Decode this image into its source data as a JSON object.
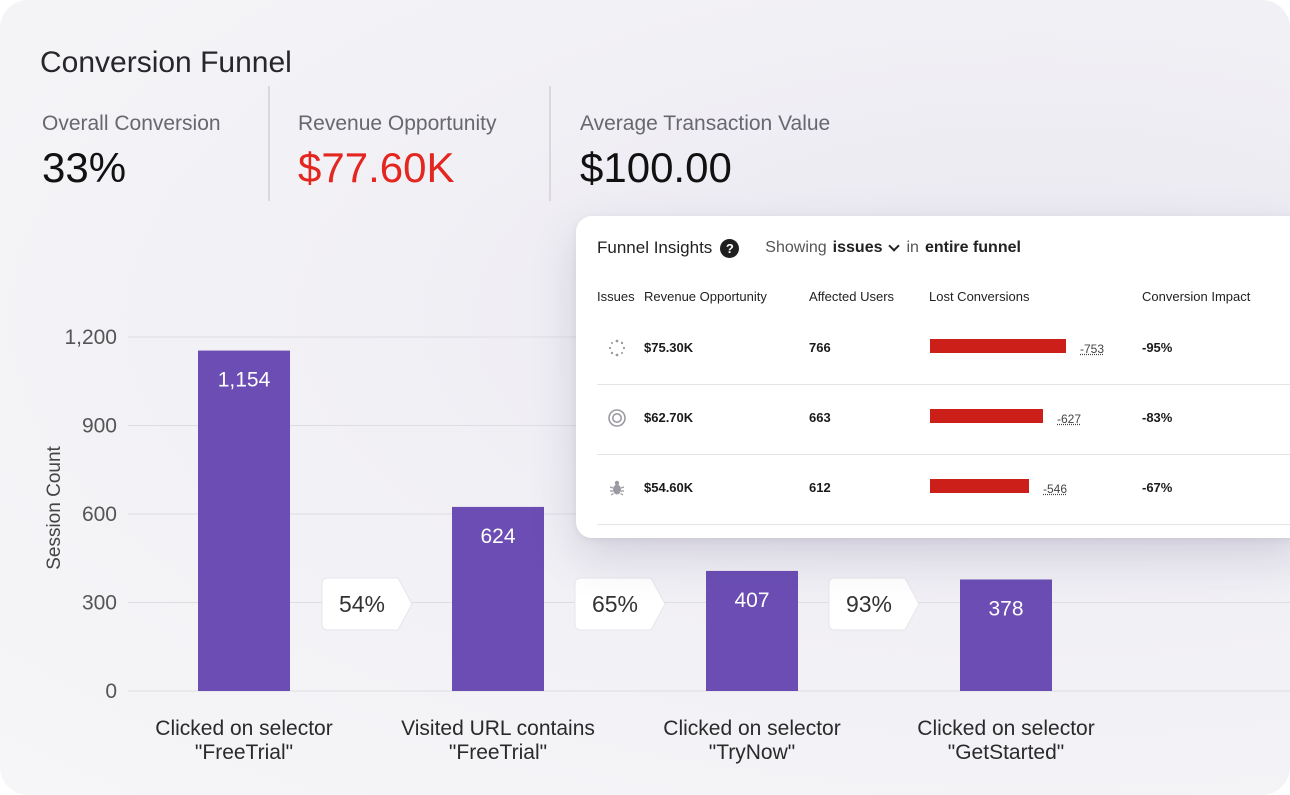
{
  "title": "Conversion Funnel",
  "kpis": [
    {
      "label": "Overall Conversion",
      "value": "33%"
    },
    {
      "label": "Revenue Opportunity",
      "value": "$77.60K"
    },
    {
      "label": "Average Transaction Value",
      "value": "$100.00"
    }
  ],
  "colors": {
    "bar": "#6b4db3",
    "accent_red": "#e3261f",
    "impact_bar": "#cc1f1a"
  },
  "insights": {
    "title": "Funnel Insights",
    "help_icon": "question-circle-icon",
    "showing_label": "Showing",
    "filter_value": "issues",
    "in_label": "in",
    "scope": "entire funnel",
    "headers": {
      "issues": "Issues",
      "revenue": "Revenue Opportunity",
      "users": "Affected Users",
      "lost": "Lost Conversions",
      "impact": "Conversion Impact"
    },
    "rows": [
      {
        "icon": "loading-spinner-icon",
        "revenue": "$75.30K",
        "users": "766",
        "lost": "-753",
        "lost_value": 753,
        "impact": "-95%"
      },
      {
        "icon": "target-icon",
        "revenue": "$62.70K",
        "users": "663",
        "lost": "-627",
        "lost_value": 627,
        "impact": "-83%"
      },
      {
        "icon": "bug-icon",
        "revenue": "$54.60K",
        "users": "612",
        "lost": "-546",
        "lost_value": 546,
        "impact": "-67%"
      }
    ]
  },
  "chart_data": {
    "type": "bar",
    "ylabel": "Session Count",
    "ylim": [
      0,
      1200
    ],
    "yticks": [
      0,
      300,
      600,
      900,
      1200
    ],
    "ytick_labels": [
      "0",
      "300",
      "600",
      "900",
      "1,200"
    ],
    "categories": [
      [
        "Clicked on selector",
        "\"FreeTrial\""
      ],
      [
        "Visited URL contains",
        "\"FreeTrial\""
      ],
      [
        "Clicked on selector",
        "\"TryNow\""
      ],
      [
        "Clicked on selector",
        "\"GetStarted\""
      ]
    ],
    "values": [
      1154,
      624,
      407,
      378
    ],
    "value_labels": [
      "1,154",
      "624",
      "407",
      "378"
    ],
    "step_conversions": [
      "54%",
      "65%",
      "93%"
    ],
    "grid": true
  }
}
